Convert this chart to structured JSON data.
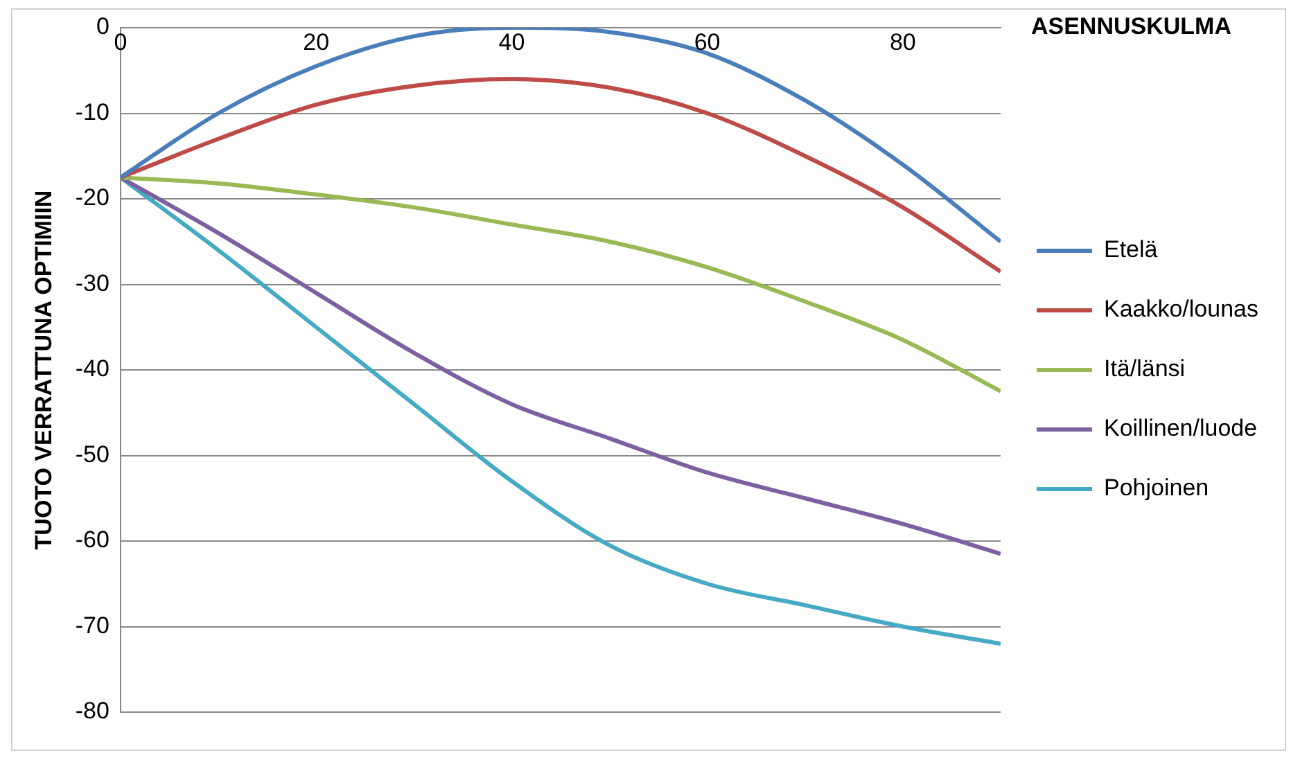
{
  "chart_data": {
    "type": "line",
    "xlabel": "ASENNUSKULMA",
    "ylabel": "TUOTO VERRATTUNA OPTIMIIN",
    "x": [
      0,
      10,
      20,
      30,
      40,
      50,
      60,
      70,
      80,
      90
    ],
    "xlim": [
      0,
      90
    ],
    "xticks": [
      0,
      20,
      40,
      60,
      80
    ],
    "ylim": [
      -80,
      0
    ],
    "yticks": [
      0,
      -10,
      -20,
      -30,
      -40,
      -50,
      -60,
      -70,
      -80
    ],
    "grid": "y",
    "legend": "right",
    "marker": "none",
    "line_style": "solid",
    "series": [
      {
        "name": "Etelä",
        "color": "#4a7ebb",
        "values": [
          -17.5,
          -10,
          -4.5,
          -1,
          0,
          -0.5,
          -3,
          -8.5,
          -16,
          -25
        ]
      },
      {
        "name": "Kaakko/lounas",
        "color": "#be4b48",
        "values": [
          -17.5,
          -13,
          -9,
          -6.8,
          -6,
          -7,
          -10,
          -15,
          -21,
          -28.5
        ]
      },
      {
        "name": "Itä/länsi",
        "color": "#98b954",
        "values": [
          -17.5,
          -18.2,
          -19.5,
          -21,
          -23,
          -25,
          -28,
          -32,
          -36.5,
          -42.5
        ]
      },
      {
        "name": "Koillinen/luode",
        "color": "#7d60a0",
        "values": [
          -17.5,
          -24,
          -31,
          -38,
          -44,
          -48,
          -52,
          -55,
          -58,
          -61.5
        ]
      },
      {
        "name": "Pohjoinen",
        "color": "#46aac5",
        "values": [
          -17.5,
          -26,
          -35,
          -44,
          -53,
          -60.5,
          -65,
          -67.5,
          -70,
          -72
        ]
      }
    ]
  }
}
